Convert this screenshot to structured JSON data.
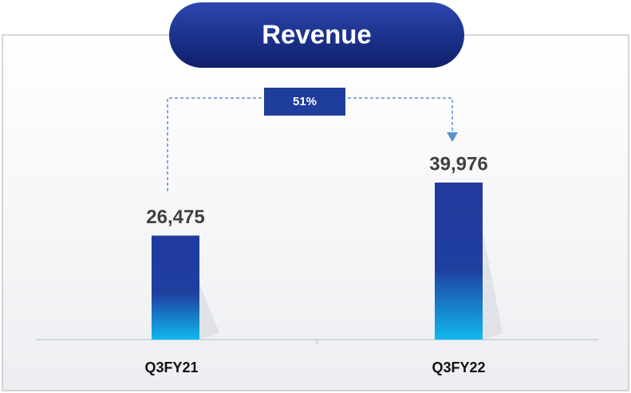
{
  "chart_data": {
    "type": "bar",
    "title": "Revenue",
    "categories": [
      "Q3FY21",
      "Q3FY22"
    ],
    "values": [
      26475,
      39976
    ],
    "value_labels": [
      "26,475",
      "39,976"
    ],
    "annotation": "51%"
  }
}
